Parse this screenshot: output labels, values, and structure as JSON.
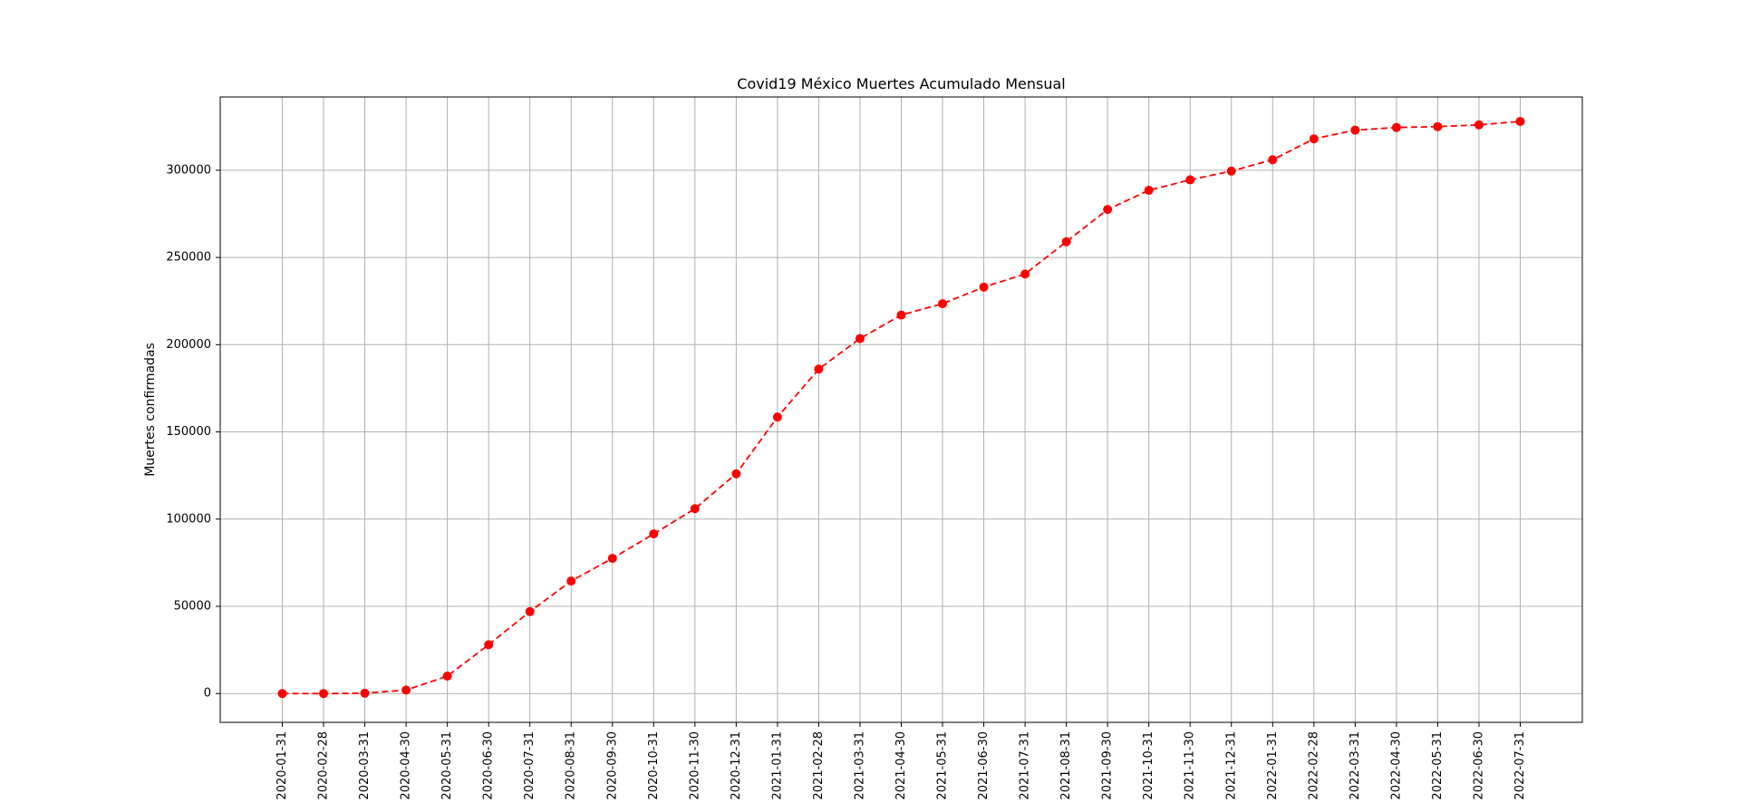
{
  "chart_data": {
    "type": "line",
    "title": "Covid19 México Muertes Acumulado Mensual",
    "xlabel": "",
    "ylabel": "Muertes confirmadas",
    "grid": true,
    "ylim": [
      -16500,
      342000
    ],
    "yticks": [
      0,
      50000,
      100000,
      150000,
      200000,
      250000,
      300000
    ],
    "categories": [
      "2020-01-31",
      "2020-02-28",
      "2020-03-31",
      "2020-04-30",
      "2020-05-31",
      "2020-06-30",
      "2020-07-31",
      "2020-08-31",
      "2020-09-30",
      "2020-10-31",
      "2020-11-30",
      "2020-12-31",
      "2021-01-31",
      "2021-02-28",
      "2021-03-31",
      "2021-04-30",
      "2021-05-31",
      "2021-06-30",
      "2021-07-31",
      "2021-08-31",
      "2021-09-30",
      "2021-10-31",
      "2021-11-30",
      "2021-12-31",
      "2022-01-31",
      "2022-02-28",
      "2022-03-31",
      "2022-04-30",
      "2022-05-31",
      "2022-06-30",
      "2022-07-31"
    ],
    "series": [
      {
        "name": "Muertes confirmadas",
        "color": "#ff0000",
        "linestyle": "dashed",
        "marker": "circle",
        "values": [
          0,
          0,
          200,
          2000,
          10000,
          28000,
          47000,
          64500,
          77500,
          91500,
          106000,
          126000,
          158500,
          186000,
          203500,
          217000,
          223500,
          233000,
          240500,
          259000,
          277500,
          288500,
          294500,
          299500,
          306000,
          318000,
          323000,
          324500,
          325000,
          326000,
          328000
        ]
      }
    ]
  }
}
